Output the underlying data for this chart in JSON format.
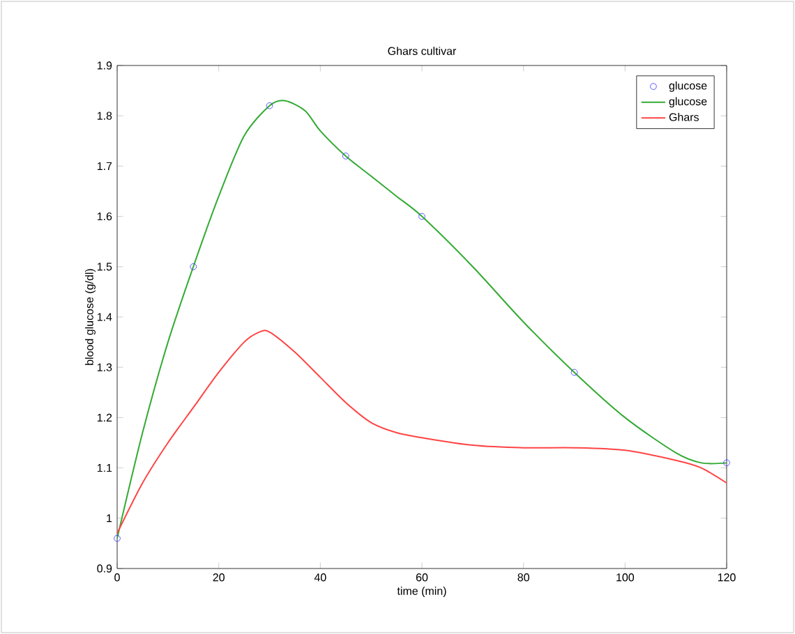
{
  "chart_data": {
    "type": "line",
    "title": "Ghars cultivar",
    "xlabel": "time (min)",
    "ylabel": "blood glucose (g/dl)",
    "xlim": [
      0,
      120
    ],
    "ylim": [
      0.9,
      1.9
    ],
    "xticks": [
      0,
      20,
      40,
      60,
      80,
      100,
      120
    ],
    "yticks": [
      0.9,
      1,
      1.1,
      1.2,
      1.3,
      1.4,
      1.5,
      1.6,
      1.7,
      1.8,
      1.9
    ],
    "legend": "top right",
    "grid": false,
    "series": [
      {
        "name": "glucose",
        "type": "scatter",
        "marker": "circle",
        "color": "#3333ff",
        "x": [
          0,
          15,
          30,
          45,
          60,
          90,
          120
        ],
        "values": [
          0.96,
          1.5,
          1.82,
          1.72,
          1.6,
          1.29,
          1.11
        ]
      },
      {
        "name": "glucose",
        "marker": "none",
        "line_style": "solid",
        "color": "#33aa33",
        "x": [
          0,
          5,
          10,
          15,
          20,
          25,
          30,
          33,
          37,
          40,
          45,
          50,
          55,
          60,
          70,
          80,
          90,
          100,
          110,
          115,
          120
        ],
        "values": [
          0.96,
          1.17,
          1.35,
          1.5,
          1.64,
          1.76,
          1.82,
          1.83,
          1.81,
          1.77,
          1.72,
          1.68,
          1.64,
          1.6,
          1.5,
          1.39,
          1.29,
          1.2,
          1.13,
          1.11,
          1.11
        ]
      },
      {
        "name": "Ghars",
        "marker": "none",
        "line_style": "solid",
        "color": "#ff4444",
        "x": [
          0,
          5,
          10,
          15,
          20,
          25,
          28,
          30,
          35,
          40,
          45,
          50,
          55,
          60,
          70,
          80,
          90,
          100,
          110,
          115,
          120
        ],
        "values": [
          0.97,
          1.07,
          1.15,
          1.22,
          1.29,
          1.35,
          1.37,
          1.37,
          1.33,
          1.28,
          1.23,
          1.19,
          1.17,
          1.16,
          1.145,
          1.14,
          1.14,
          1.135,
          1.115,
          1.1,
          1.07
        ]
      }
    ]
  }
}
